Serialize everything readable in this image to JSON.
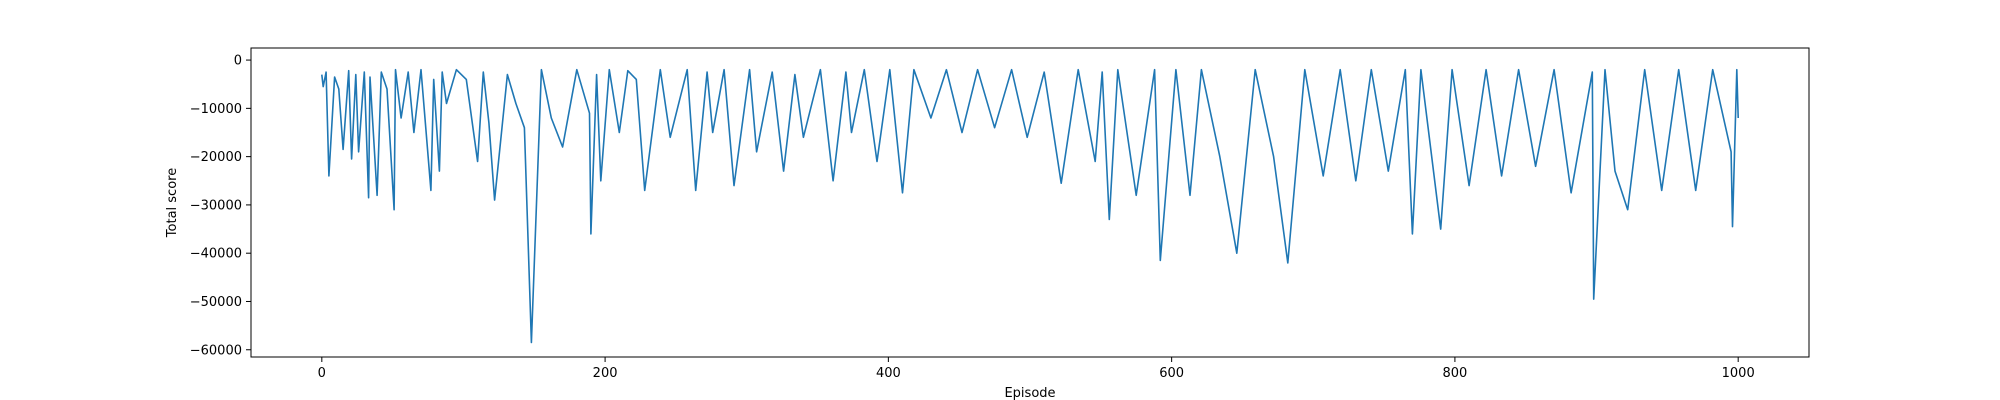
{
  "chart_data": {
    "type": "line",
    "title": "",
    "xlabel": "Episode",
    "ylabel": "Total score",
    "xlim": [
      -50,
      1050
    ],
    "ylim": [
      -61500,
      2500
    ],
    "x_ticks": [
      0,
      200,
      400,
      600,
      800,
      1000
    ],
    "y_ticks": [
      0,
      -10000,
      -20000,
      -30000,
      -40000,
      -50000,
      -60000
    ],
    "x_tick_labels": [
      "0",
      "200",
      "400",
      "600",
      "800",
      "1000"
    ],
    "y_tick_labels": [
      "0",
      "−10000",
      "−20000",
      "−30000",
      "−40000",
      "−50000",
      "−60000"
    ],
    "grid": false,
    "legend": "none",
    "line_color": "#1f77b4",
    "series": [
      {
        "x": [
          0,
          1,
          3,
          5,
          9,
          12,
          15,
          19,
          21,
          24,
          26,
          30,
          33,
          34,
          39,
          42,
          46,
          51,
          52,
          56,
          61,
          65,
          70,
          77,
          79,
          83,
          85,
          88,
          95,
          102,
          110,
          114,
          118,
          122,
          131,
          137,
          143,
          148,
          155,
          162,
          170,
          180,
          189,
          190,
          194,
          197,
          203,
          210,
          216,
          222,
          228,
          239,
          246,
          258,
          264,
          272,
          276,
          284,
          291,
          302,
          307,
          318,
          326,
          334,
          340,
          352,
          361,
          370,
          374,
          383,
          392,
          401,
          410,
          418,
          430,
          441,
          452,
          463,
          475,
          487,
          498,
          510,
          522,
          534,
          546,
          551,
          556,
          562,
          575,
          588,
          592,
          603,
          613,
          621,
          634,
          646,
          659,
          672,
          682,
          694,
          707,
          719,
          730,
          741,
          753,
          765,
          770,
          776,
          790,
          798,
          810,
          822,
          833,
          845,
          857,
          870,
          882,
          897,
          898,
          906,
          913,
          922,
          934,
          946,
          958,
          970,
          982,
          995,
          996,
          999,
          1000
        ],
        "y": [
          -3000,
          -5500,
          -2500,
          -24000,
          -3500,
          -6000,
          -18500,
          -2200,
          -20500,
          -3000,
          -19000,
          -2500,
          -28500,
          -3500,
          -28000,
          -2500,
          -6000,
          -31000,
          -2000,
          -12000,
          -2500,
          -15000,
          -2000,
          -27000,
          -4000,
          -23000,
          -2500,
          -9000,
          -2000,
          -4000,
          -21000,
          -2500,
          -13000,
          -29000,
          -3000,
          -9000,
          -14000,
          -58500,
          -2000,
          -12000,
          -18000,
          -2000,
          -11000,
          -36000,
          -3000,
          -25000,
          -2000,
          -15000,
          -2200,
          -4000,
          -27000,
          -2000,
          -16000,
          -2000,
          -27000,
          -2500,
          -15000,
          -2000,
          -26000,
          -2000,
          -19000,
          -2500,
          -23000,
          -3000,
          -16000,
          -2000,
          -25000,
          -2500,
          -15000,
          -2000,
          -21000,
          -2000,
          -27500,
          -2000,
          -12000,
          -2000,
          -15000,
          -2000,
          -14000,
          -2000,
          -16000,
          -2500,
          -25500,
          -2000,
          -21000,
          -2500,
          -33000,
          -2000,
          -28000,
          -2000,
          -41500,
          -2000,
          -28000,
          -2000,
          -20000,
          -40000,
          -2000,
          -20000,
          -42000,
          -2000,
          -24000,
          -2000,
          -25000,
          -2000,
          -23000,
          -2000,
          -36000,
          -2000,
          -35000,
          -2000,
          -26000,
          -2000,
          -24000,
          -2000,
          -22000,
          -2000,
          -27500,
          -2500,
          -49500,
          -2000,
          -23000,
          -31000,
          -2000,
          -27000,
          -2000,
          -27000,
          -2000,
          -19000,
          -34500,
          -2000,
          -12000
        ]
      }
    ]
  }
}
